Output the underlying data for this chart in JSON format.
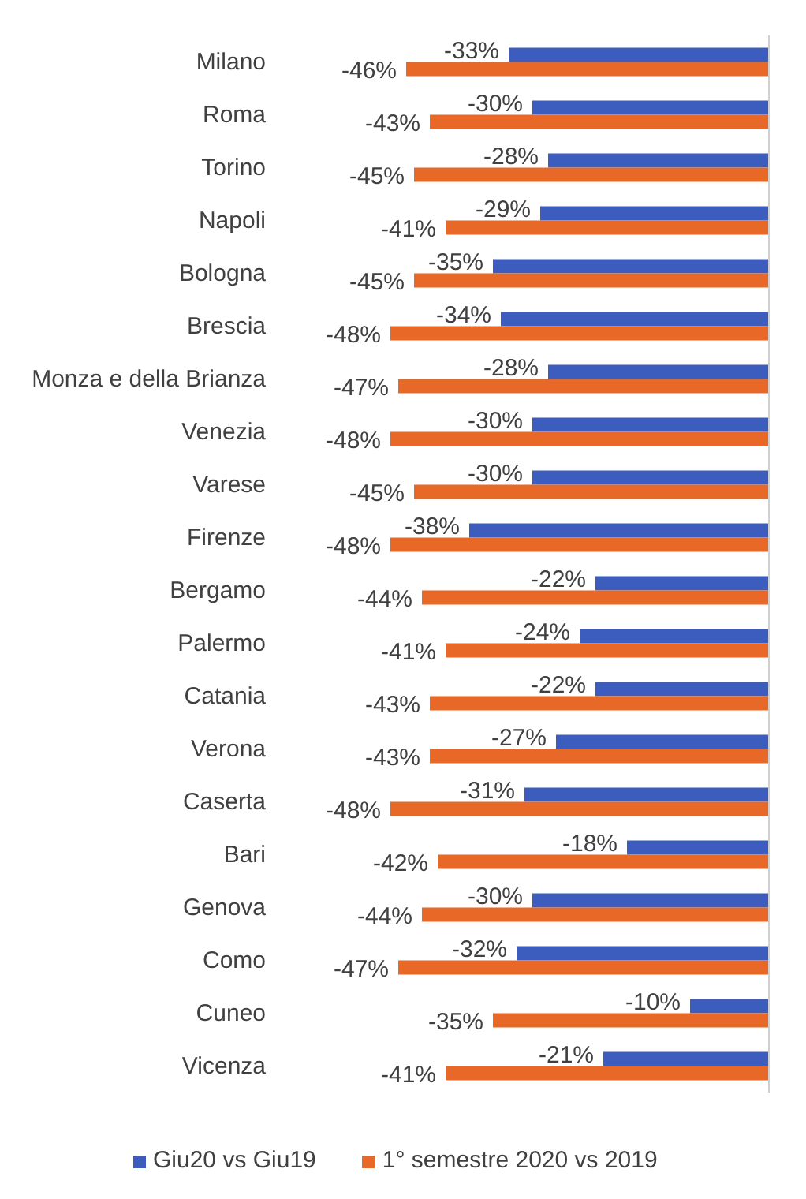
{
  "chart_data": {
    "type": "bar",
    "orientation": "horizontal",
    "tick_labels": "y",
    "legend": "bottom",
    "categories": [
      "Milano",
      "Roma",
      "Torino",
      "Napoli",
      "Bologna",
      "Brescia",
      "Monza e della Brianza",
      "Venezia",
      "Varese",
      "Firenze",
      "Bergamo",
      "Palermo",
      "Catania",
      "Verona",
      "Caserta",
      "Bari",
      "Genova",
      "Como",
      "Cuneo",
      "Vicenza"
    ],
    "series": [
      {
        "name": "Giu20 vs Giu19",
        "color": "#3c5cbe",
        "values": [
          -33,
          -30,
          -28,
          -29,
          -35,
          -34,
          -28,
          -30,
          -30,
          -38,
          -22,
          -24,
          -22,
          -27,
          -31,
          -18,
          -30,
          -32,
          -10,
          -21
        ],
        "value_labels": [
          "-33%",
          "-30%",
          "-28%",
          "-29%",
          "-35%",
          "-34%",
          "-28%",
          "-30%",
          "-30%",
          "-38%",
          "-22%",
          "-24%",
          "-22%",
          "-27%",
          "-31%",
          "-18%",
          "-30%",
          "-32%",
          "-10%",
          "-21%"
        ]
      },
      {
        "name": "1° semestre 2020 vs 2019",
        "color": "#e86828",
        "values": [
          -46,
          -43,
          -45,
          -41,
          -45,
          -48,
          -47,
          -48,
          -45,
          -48,
          -44,
          -41,
          -43,
          -43,
          -48,
          -42,
          -44,
          -47,
          -35,
          -41
        ],
        "value_labels": [
          "-46%",
          "-43%",
          "-45%",
          "-41%",
          "-45%",
          "-48%",
          "-47%",
          "-48%",
          "-45%",
          "-48%",
          "-44%",
          "-41%",
          "-43%",
          "-43%",
          "-48%",
          "-42%",
          "-44%",
          "-47%",
          "-35%",
          "-41%"
        ]
      }
    ]
  }
}
